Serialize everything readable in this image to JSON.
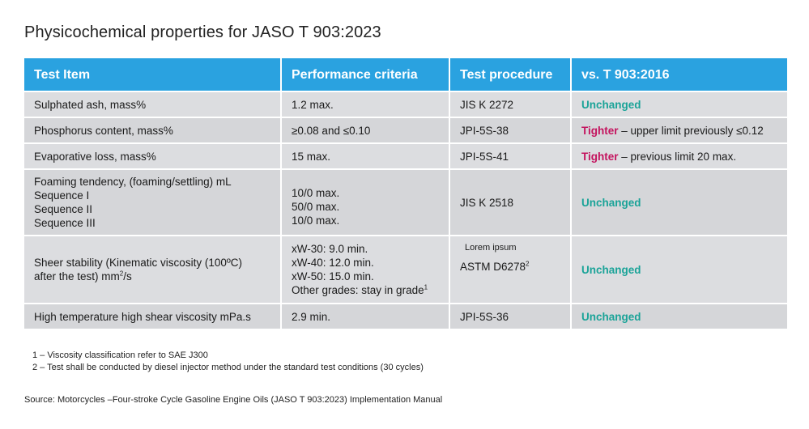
{
  "title": "Physicochemical properties for JASO T 903:2023",
  "headers": [
    "Test Item",
    "Performance criteria",
    "Test procedure",
    "vs. T 903:2016"
  ],
  "rows": [
    {
      "item": [
        "Sulphated ash, mass%"
      ],
      "criteria": [
        "1.2 max."
      ],
      "procedure": "JIS K 2272",
      "status": "Unchanged",
      "status_type": "unchanged",
      "status_note": ""
    },
    {
      "item": [
        "Phosphorus content, mass%"
      ],
      "criteria": [
        "≥0.08 and ≤0.10"
      ],
      "procedure": "JPI-5S-38",
      "status": "Tighter",
      "status_type": "tighter",
      "status_note": " – upper limit previously ≤0.12"
    },
    {
      "item": [
        "Evaporative loss, mass%"
      ],
      "criteria": [
        "15 max."
      ],
      "procedure": "JPI-5S-41",
      "status": "Tighter",
      "status_type": "tighter",
      "status_note": " – previous limit 20 max."
    },
    {
      "item": [
        "Foaming tendency, (foaming/settling) mL",
        "Sequence I",
        "Sequence II",
        "Sequence III"
      ],
      "criteria": [
        "10/0 max.",
        "50/0 max.",
        "10/0 max."
      ],
      "procedure": "JIS K 2518",
      "status": "Unchanged",
      "status_type": "unchanged",
      "status_note": ""
    },
    {
      "item": [
        "Sheer stability (Kinematic viscosity (100ºC)",
        "after the test) mm",
        "2",
        "/s"
      ],
      "criteria": [
        "xW-30: 9.0 min.",
        "xW-40: 12.0 min.",
        "xW-50: 15.0 min.",
        "Other grades: stay in grade",
        "1"
      ],
      "procedure_note": "Lorem ipsum",
      "procedure": "ASTM D6278",
      "procedure_sup": "2",
      "status": "Unchanged",
      "status_type": "unchanged",
      "status_note": ""
    },
    {
      "item": [
        "High temperature high shear viscosity mPa.s"
      ],
      "criteria": [
        "2.9 min."
      ],
      "procedure": "JPI-5S-36",
      "status": "Unchanged",
      "status_type": "unchanged",
      "status_note": ""
    }
  ],
  "footnotes": [
    "1 – Viscosity classification refer to SAE J300",
    "2 – Test shall be conducted by diesel injector method under the standard test conditions (30 cycles)"
  ],
  "source": "Source: Motorcycles –Four-stroke Cycle Gasoline Engine Oils (JASO T 903:2023) Implementation Manual",
  "colors": {
    "header_bg": "#2aa2e0",
    "unchanged": "#1aa398",
    "tighter": "#c4135e",
    "row_bg": "#d9dadd"
  }
}
